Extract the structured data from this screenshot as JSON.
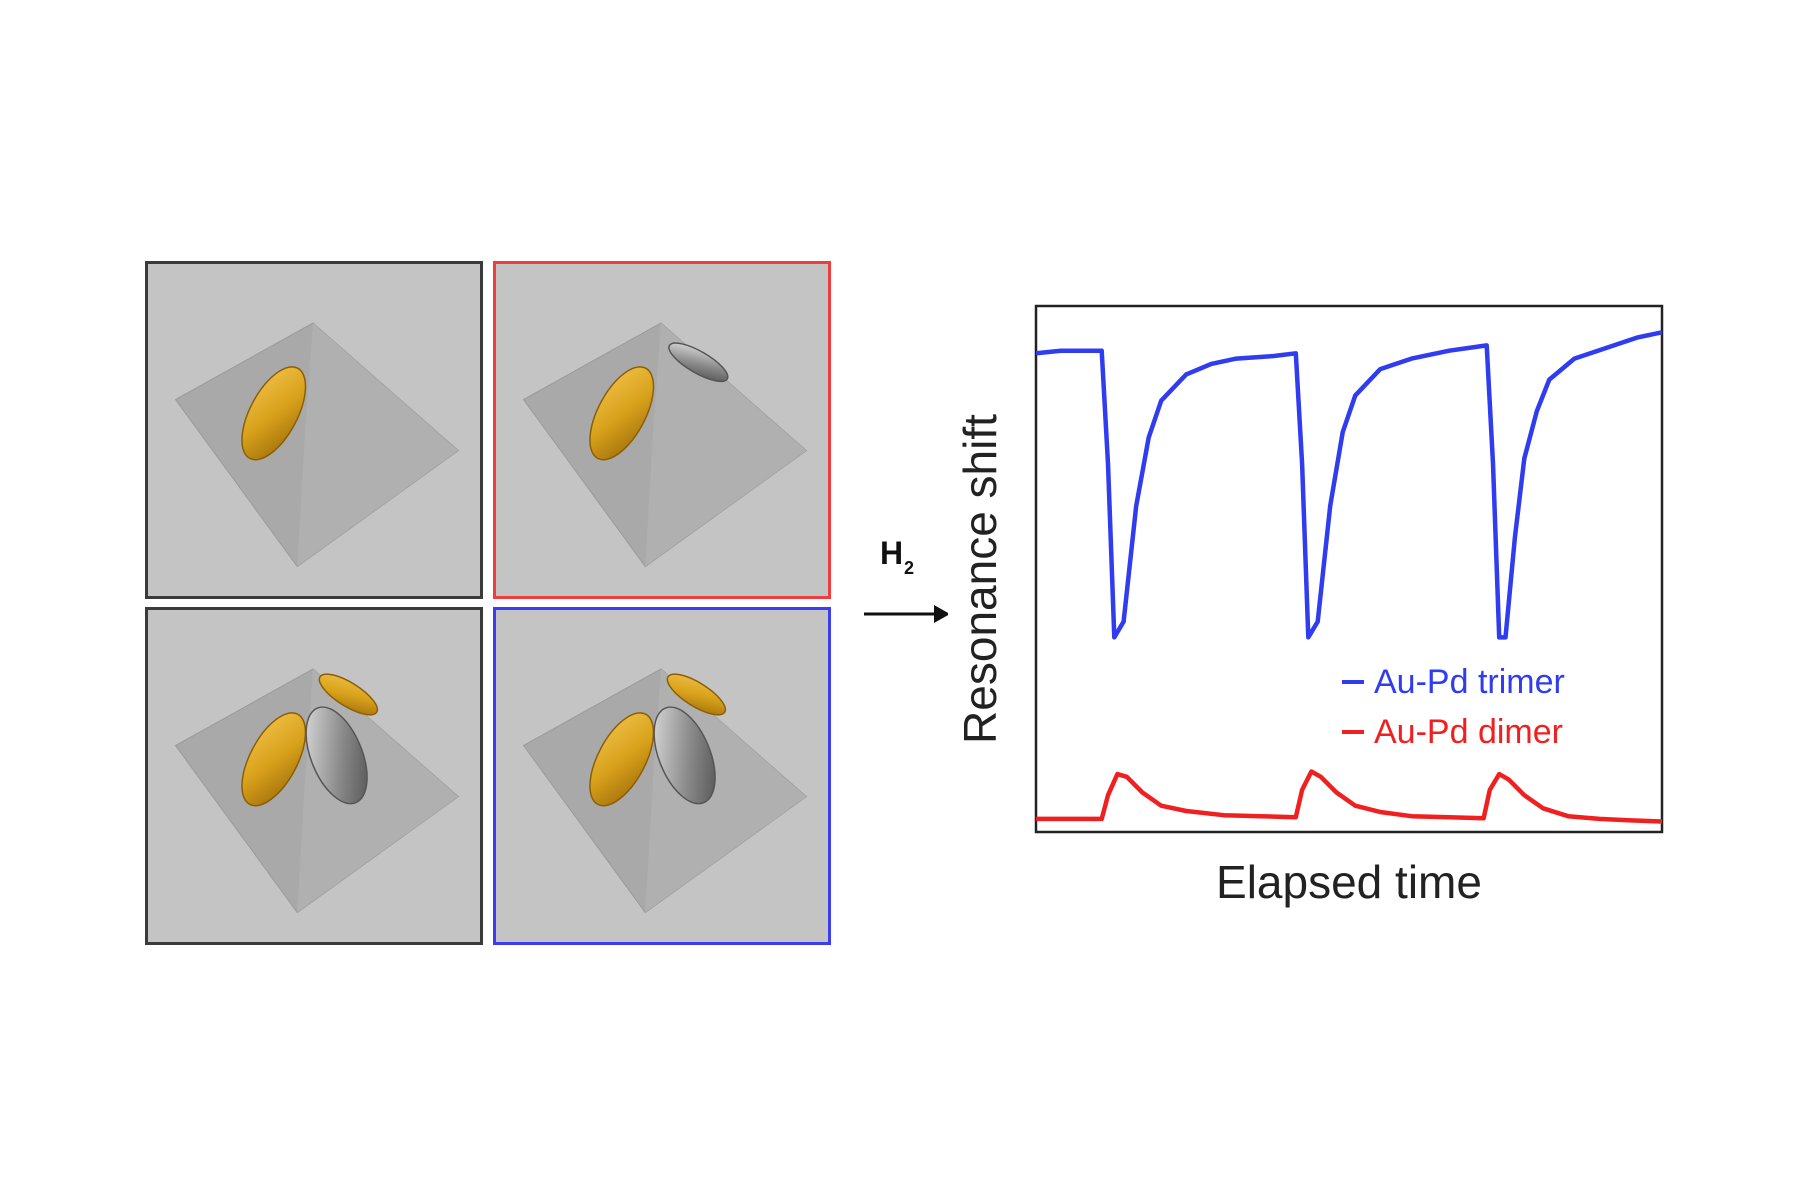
{
  "panels": [
    {
      "id": "panel-gold-monomer",
      "border_color": "#3a3a3a",
      "rods": [
        "gold"
      ]
    },
    {
      "id": "panel-au-pd-dimer",
      "border_color": "#f03c3c",
      "rods": [
        "gold",
        "pd-small"
      ]
    },
    {
      "id": "panel-au-pd-au-trimer-reference",
      "border_color": "#3a3a3a",
      "rods": [
        "gold",
        "pd-large",
        "gold-small"
      ]
    },
    {
      "id": "panel-au-pd-trimer",
      "border_color": "#3c3cf0",
      "rods": [
        "gold",
        "pd-large",
        "gold-small"
      ]
    }
  ],
  "arrow": {
    "label_main": "H",
    "label_sub": "2"
  },
  "chart_data": {
    "type": "line",
    "xlabel": "Elapsed time",
    "ylabel": "Resonance shift",
    "x_ticks_shown": false,
    "y_ticks_shown": false,
    "legend_position": "bottom-right",
    "series": [
      {
        "name": "Au-Pd trimer",
        "color": "#2f3cf0",
        "x": [
          0,
          4,
          8,
          10.5,
          11.5,
          12.5,
          14,
          16,
          18,
          20,
          24,
          28,
          32,
          38,
          41.5,
          42.5,
          43.5,
          45,
          47,
          49,
          51,
          55,
          60,
          66,
          72,
          73,
          74,
          75,
          76.5,
          78,
          80,
          82,
          86,
          91,
          96,
          100
        ],
        "y": [
          0.91,
          0.915,
          0.915,
          0.915,
          0.7,
          0.37,
          0.4,
          0.62,
          0.75,
          0.82,
          0.87,
          0.89,
          0.9,
          0.905,
          0.91,
          0.7,
          0.37,
          0.4,
          0.62,
          0.76,
          0.83,
          0.88,
          0.9,
          0.915,
          0.925,
          0.7,
          0.37,
          0.37,
          0.56,
          0.71,
          0.8,
          0.86,
          0.9,
          0.92,
          0.94,
          0.95
        ]
      },
      {
        "name": "Au-Pd dimer",
        "color": "#f02020",
        "x": [
          0,
          5,
          10.5,
          11.5,
          13,
          14.5,
          17,
          20,
          24,
          30,
          36,
          41.5,
          42.5,
          44,
          45.5,
          48,
          51,
          55,
          60,
          66,
          71.5,
          72.5,
          74,
          75.5,
          78,
          81,
          85,
          90,
          95,
          100
        ],
        "y": [
          0.025,
          0.025,
          0.025,
          0.07,
          0.11,
          0.105,
          0.075,
          0.05,
          0.04,
          0.032,
          0.03,
          0.028,
          0.08,
          0.115,
          0.105,
          0.075,
          0.05,
          0.038,
          0.03,
          0.028,
          0.026,
          0.08,
          0.11,
          0.1,
          0.07,
          0.045,
          0.03,
          0.025,
          0.022,
          0.02
        ]
      }
    ],
    "xlim": [
      0,
      100
    ],
    "ylim": [
      0,
      1
    ]
  }
}
